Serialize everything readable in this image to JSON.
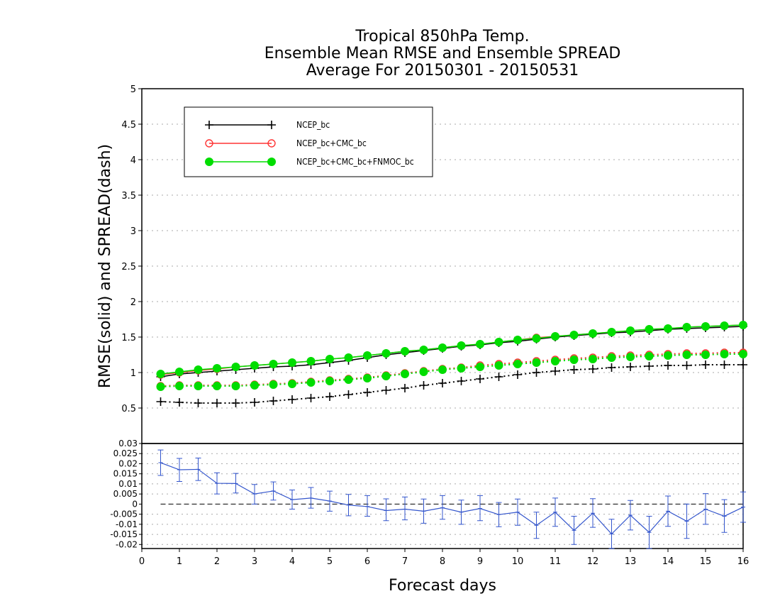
{
  "chart_data": {
    "type": "line",
    "title": [
      "Tropical 850hPa Temp.",
      "Ensemble Mean RMSE and Ensemble SPREAD",
      "Average For 20150301 - 20150531"
    ],
    "xlabel": "Forecast days",
    "ylabel": "RMSE(solid) and SPREAD(dash)",
    "xlim": [
      0,
      16
    ],
    "ylim": [
      0,
      5
    ],
    "x_ticks": [
      "0",
      "1",
      "2",
      "3",
      "4",
      "5",
      "6",
      "7",
      "8",
      "9",
      "10",
      "11",
      "12",
      "13",
      "14",
      "15",
      "16"
    ],
    "y_ticks": [
      "0.5",
      "1",
      "1.5",
      "2",
      "2.5",
      "3",
      "3.5",
      "4",
      "4.5",
      "5"
    ],
    "grid": true,
    "legend_position": "top-left",
    "x": [
      0.5,
      1,
      1.5,
      2,
      2.5,
      3,
      3.5,
      4,
      4.5,
      5,
      5.5,
      6,
      6.5,
      7,
      7.5,
      8,
      8.5,
      9,
      9.5,
      10,
      10.5,
      11,
      11.5,
      12,
      12.5,
      13,
      13.5,
      14,
      14.5,
      15,
      15.5,
      16
    ],
    "series": [
      {
        "name": "NCEP_bc",
        "color": "#000000",
        "marker": "plus",
        "rmse": [
          0.94,
          0.98,
          1.0,
          1.02,
          1.04,
          1.06,
          1.08,
          1.09,
          1.11,
          1.14,
          1.17,
          1.21,
          1.25,
          1.28,
          1.31,
          1.34,
          1.37,
          1.39,
          1.42,
          1.44,
          1.47,
          1.5,
          1.52,
          1.54,
          1.56,
          1.57,
          1.59,
          1.61,
          1.62,
          1.63,
          1.64,
          1.65
        ],
        "spread": [
          0.59,
          0.58,
          0.57,
          0.57,
          0.57,
          0.58,
          0.6,
          0.62,
          0.64,
          0.66,
          0.69,
          0.72,
          0.75,
          0.78,
          0.82,
          0.85,
          0.88,
          0.91,
          0.94,
          0.97,
          1.0,
          1.02,
          1.04,
          1.05,
          1.07,
          1.08,
          1.09,
          1.1,
          1.1,
          1.11,
          1.11,
          1.11
        ]
      },
      {
        "name": "NCEP_bc+CMC_bc",
        "color": "#ff3333",
        "marker": "open-circle",
        "rmse": [
          0.97,
          1.0,
          1.03,
          1.05,
          1.08,
          1.1,
          1.12,
          1.14,
          1.16,
          1.19,
          1.21,
          1.24,
          1.27,
          1.3,
          1.32,
          1.35,
          1.38,
          1.4,
          1.43,
          1.46,
          1.49,
          1.51,
          1.53,
          1.55,
          1.57,
          1.59,
          1.61,
          1.62,
          1.64,
          1.65,
          1.66,
          1.67
        ],
        "spread": [
          0.81,
          0.82,
          0.82,
          0.82,
          0.82,
          0.83,
          0.84,
          0.85,
          0.87,
          0.89,
          0.91,
          0.93,
          0.96,
          0.99,
          1.02,
          1.05,
          1.07,
          1.1,
          1.12,
          1.14,
          1.16,
          1.18,
          1.2,
          1.21,
          1.23,
          1.24,
          1.25,
          1.26,
          1.27,
          1.27,
          1.28,
          1.28
        ]
      },
      {
        "name": "NCEP_bc+CMC_bc+FNMOC_bc",
        "color": "#00dd00",
        "marker": "filled-circle",
        "rmse": [
          0.98,
          1.01,
          1.04,
          1.06,
          1.08,
          1.1,
          1.12,
          1.14,
          1.16,
          1.19,
          1.21,
          1.24,
          1.27,
          1.3,
          1.32,
          1.35,
          1.38,
          1.4,
          1.43,
          1.46,
          1.48,
          1.51,
          1.53,
          1.55,
          1.57,
          1.59,
          1.61,
          1.62,
          1.64,
          1.65,
          1.66,
          1.67
        ],
        "spread": [
          0.8,
          0.81,
          0.81,
          0.81,
          0.81,
          0.82,
          0.83,
          0.84,
          0.86,
          0.88,
          0.9,
          0.92,
          0.95,
          0.98,
          1.01,
          1.04,
          1.06,
          1.08,
          1.1,
          1.12,
          1.14,
          1.16,
          1.18,
          1.19,
          1.21,
          1.22,
          1.23,
          1.24,
          1.25,
          1.25,
          1.26,
          1.26
        ]
      }
    ],
    "difference_panel": {
      "ylim": [
        -0.022,
        0.03
      ],
      "y_ticks": [
        "-0.02",
        "-0.015",
        "-0.01",
        "-0.005",
        "0",
        "0.005",
        "0.01",
        "0.015",
        "0.02",
        "0.025",
        "0.03"
      ],
      "color": "#3355cc",
      "values": [
        0.0205,
        0.017,
        0.0172,
        0.0103,
        0.0102,
        0.005,
        0.0065,
        0.0022,
        0.003,
        0.0015,
        -0.0005,
        -0.0012,
        -0.0032,
        -0.0025,
        -0.0035,
        -0.0018,
        -0.004,
        -0.0022,
        -0.0052,
        -0.004,
        -0.0105,
        -0.004,
        -0.013,
        -0.0045,
        -0.0148,
        -0.0055,
        -0.014,
        -0.0035,
        -0.0085,
        -0.0025,
        -0.006,
        -0.0015
      ],
      "err_low": [
        0.0142,
        0.0112,
        0.0117,
        0.005,
        0.0055,
        0.0,
        0.002,
        -0.0025,
        -0.002,
        -0.0035,
        -0.0058,
        -0.006,
        -0.0082,
        -0.0078,
        -0.0095,
        -0.0075,
        -0.01,
        -0.0082,
        -0.0112,
        -0.0105,
        -0.017,
        -0.011,
        -0.02,
        -0.0115,
        -0.022,
        -0.0128,
        -0.022,
        -0.011,
        -0.017,
        -0.01,
        -0.014,
        -0.009
      ],
      "err_high": [
        0.0268,
        0.0226,
        0.0228,
        0.0155,
        0.0152,
        0.0097,
        0.011,
        0.007,
        0.0082,
        0.0064,
        0.0048,
        0.0042,
        0.0026,
        0.0035,
        0.0025,
        0.0042,
        0.002,
        0.0042,
        0.0008,
        0.0025,
        -0.004,
        0.003,
        -0.006,
        0.0027,
        -0.0075,
        0.0018,
        -0.006,
        0.004,
        0.0,
        0.0052,
        0.0022,
        0.006
      ]
    }
  }
}
